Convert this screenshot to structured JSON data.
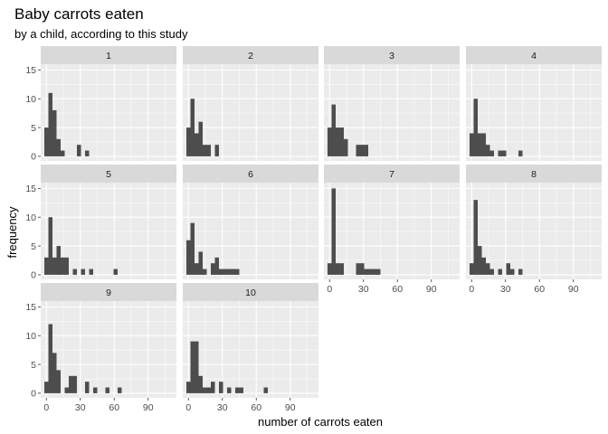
{
  "chart_data": {
    "type": "bar",
    "subtype": "histogram-facet-grid",
    "title": "Baby carrots eaten",
    "subtitle": "by a child, according to this study",
    "xlabel": "number of carrots eaten",
    "ylabel": "frequency",
    "xlim": [
      -5,
      115
    ],
    "ylim": [
      -0.8,
      16
    ],
    "x_ticks": [
      0,
      30,
      60,
      90
    ],
    "y_ticks": [
      0,
      5,
      10,
      15
    ],
    "bin_width": 3.6,
    "bin_start": -1.8,
    "grid": true,
    "colors": {
      "bar": "#4d4d4d",
      "panel": "#ebebeb",
      "strip": "#d9d9d9",
      "grid": "#ffffff"
    },
    "facets": [
      {
        "label": "1",
        "counts": [
          5,
          11,
          8,
          3,
          1,
          0,
          0,
          0,
          2,
          0,
          1,
          0,
          0,
          0,
          0,
          0,
          0,
          0,
          0,
          0,
          0,
          0,
          0,
          0,
          0,
          0,
          0,
          0,
          0
        ]
      },
      {
        "label": "2",
        "counts": [
          5,
          10,
          4,
          6,
          2,
          2,
          0,
          2,
          0,
          0,
          0,
          0,
          0,
          0,
          0,
          0,
          0,
          0,
          0,
          0,
          0,
          0,
          0,
          0,
          0,
          0,
          0,
          0,
          0
        ]
      },
      {
        "label": "3",
        "counts": [
          5,
          9,
          5,
          5,
          3,
          0,
          0,
          2,
          2,
          2,
          0,
          0,
          0,
          0,
          0,
          0,
          0,
          0,
          0,
          0,
          0,
          0,
          0,
          0,
          0,
          0,
          0,
          0,
          0
        ]
      },
      {
        "label": "4",
        "counts": [
          4,
          10,
          4,
          4,
          2,
          1,
          0,
          1,
          1,
          0,
          0,
          0,
          1,
          0,
          0,
          0,
          0,
          0,
          0,
          0,
          0,
          0,
          0,
          0,
          0,
          0,
          0,
          0,
          0
        ]
      },
      {
        "label": "5",
        "counts": [
          3,
          10,
          3,
          5,
          3,
          3,
          0,
          1,
          0,
          1,
          0,
          1,
          0,
          0,
          0,
          0,
          0,
          1,
          0,
          0,
          0,
          0,
          0,
          0,
          0,
          0,
          0,
          0,
          0
        ]
      },
      {
        "label": "6",
        "counts": [
          6,
          9,
          2,
          4,
          1,
          0,
          2,
          3,
          1,
          1,
          1,
          1,
          1,
          0,
          0,
          0,
          0,
          0,
          0,
          0,
          0,
          0,
          0,
          0,
          0,
          0,
          0,
          0,
          0
        ]
      },
      {
        "label": "7",
        "counts": [
          2,
          15,
          2,
          2,
          0,
          0,
          0,
          2,
          2,
          1,
          1,
          1,
          1,
          0,
          0,
          0,
          0,
          0,
          0,
          0,
          0,
          0,
          0,
          0,
          0,
          0,
          0,
          0,
          0
        ]
      },
      {
        "label": "8",
        "counts": [
          2,
          13,
          5,
          3,
          2,
          1,
          0,
          1,
          0,
          2,
          1,
          0,
          1,
          0,
          0,
          0,
          0,
          0,
          0,
          0,
          0,
          0,
          0,
          0,
          0,
          0,
          0,
          0,
          0
        ]
      },
      {
        "label": "9",
        "counts": [
          2,
          12,
          7,
          4,
          0,
          1,
          3,
          3,
          0,
          0,
          2,
          0,
          1,
          0,
          0,
          1,
          0,
          0,
          1,
          0,
          0,
          0,
          0,
          0,
          0,
          0,
          0,
          0,
          0
        ]
      },
      {
        "label": "10",
        "counts": [
          2,
          9,
          9,
          3,
          1,
          1,
          2,
          0,
          2,
          0,
          1,
          0,
          1,
          1,
          0,
          0,
          0,
          0,
          0,
          1,
          0,
          0,
          0,
          0,
          0,
          0,
          0,
          0,
          0
        ]
      }
    ]
  }
}
